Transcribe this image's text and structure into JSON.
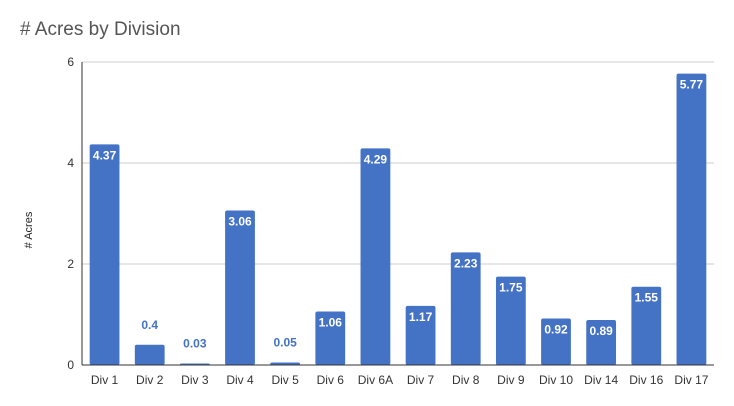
{
  "chart_data": {
    "type": "bar",
    "title": "# Acres by Division",
    "xlabel": "",
    "ylabel": "# Acres",
    "ylim": [
      0,
      6
    ],
    "yticks": [
      0,
      2,
      4,
      6
    ],
    "grid": true,
    "bar_color": "#4472c4",
    "label_inside_color": "#ffffff",
    "label_outside_color": "#4472c4",
    "categories": [
      "Div 1",
      "Div 2",
      "Div 3",
      "Div 4",
      "Div 5",
      "Div 6",
      "Div 6A",
      "Div 7",
      "Div 8",
      "Div 9",
      "Div 10",
      "Div 14",
      "Div 16",
      "Div 17"
    ],
    "values": [
      4.37,
      0.4,
      0.03,
      3.06,
      0.05,
      1.06,
      4.29,
      1.17,
      2.23,
      1.75,
      0.92,
      0.89,
      1.55,
      5.77
    ],
    "value_labels": [
      "4.37",
      "0.4",
      "0.03",
      "3.06",
      "0.05",
      "1.06",
      "4.29",
      "1.17",
      "2.23",
      "1.75",
      "0.92",
      "0.89",
      "1.55",
      "5.77"
    ]
  }
}
